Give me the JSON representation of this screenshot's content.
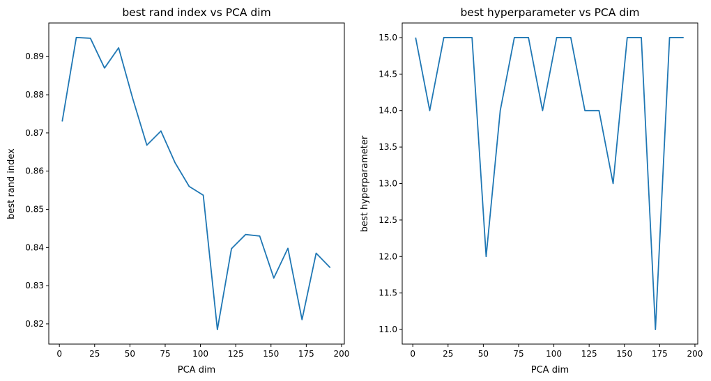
{
  "chart_data": [
    {
      "type": "line",
      "title": "best rand index vs PCA dim",
      "xlabel": "PCA dim",
      "ylabel": "best rand index",
      "xlim": [
        -7.5,
        202
      ],
      "ylim": [
        0.8147,
        0.8988
      ],
      "xticks": [
        0,
        25,
        50,
        75,
        100,
        125,
        150,
        175,
        200
      ],
      "yticks": [
        0.82,
        0.83,
        0.84,
        0.85,
        0.86,
        0.87,
        0.88,
        0.89
      ],
      "ytick_labels": [
        "0.82",
        "0.83",
        "0.84",
        "0.85",
        "0.86",
        "0.87",
        "0.88",
        "0.89"
      ],
      "grid": false,
      "color": "#1f77b4",
      "x": [
        2,
        12,
        22,
        32,
        42,
        52,
        62,
        72,
        82,
        92,
        102,
        112,
        122,
        132,
        142,
        152,
        162,
        172,
        182,
        192
      ],
      "y": [
        0.873,
        0.895,
        0.8948,
        0.887,
        0.8923,
        0.879,
        0.8668,
        0.8705,
        0.8622,
        0.856,
        0.8537,
        0.8185,
        0.8397,
        0.8434,
        0.843,
        0.832,
        0.8398,
        0.8211,
        0.8385,
        0.8347
      ]
    },
    {
      "type": "line",
      "title": "best hyperparameter vs PCA dim",
      "xlabel": "PCA dim",
      "ylabel": "best hyperparameter",
      "xlim": [
        -7.5,
        202
      ],
      "ylim": [
        10.8,
        15.2
      ],
      "xticks": [
        0,
        25,
        50,
        75,
        100,
        125,
        150,
        175,
        200
      ],
      "yticks": [
        11.0,
        11.5,
        12.0,
        12.5,
        13.0,
        13.5,
        14.0,
        14.5,
        15.0
      ],
      "ytick_labels": [
        "11.0",
        "11.5",
        "12.0",
        "12.5",
        "13.0",
        "13.5",
        "14.0",
        "14.5",
        "15.0"
      ],
      "grid": false,
      "color": "#1f77b4",
      "x": [
        2,
        12,
        22,
        32,
        42,
        52,
        62,
        72,
        82,
        92,
        102,
        112,
        122,
        132,
        142,
        152,
        162,
        172,
        182,
        192
      ],
      "y": [
        15,
        14,
        15,
        15,
        15,
        12,
        14,
        15,
        15,
        14,
        15,
        15,
        14,
        14,
        13,
        15,
        15,
        11,
        15,
        15
      ]
    }
  ]
}
